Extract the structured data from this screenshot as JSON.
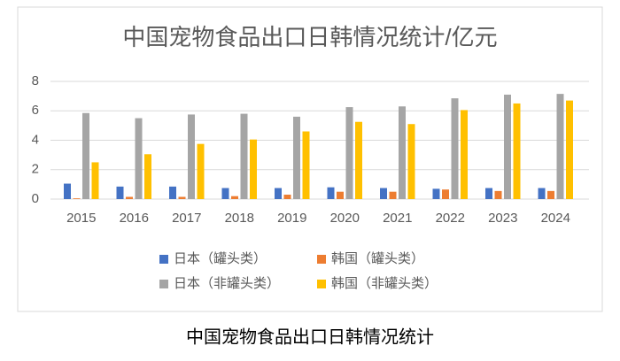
{
  "chart_data": {
    "type": "bar",
    "title": "中国宠物食品出口日韩情况统计/亿元",
    "caption": "中国宠物食品出口日韩情况统计",
    "categories": [
      "2015",
      "2016",
      "2017",
      "2018",
      "2019",
      "2020",
      "2021",
      "2022",
      "2023",
      "2024"
    ],
    "series": [
      {
        "name": "日本（罐头类）",
        "color": "#4472c4",
        "values": [
          1.05,
          0.85,
          0.85,
          0.75,
          0.75,
          0.8,
          0.75,
          0.7,
          0.75,
          0.75
        ]
      },
      {
        "name": "韩国（罐头类）",
        "color": "#ed7d31",
        "values": [
          0.05,
          0.15,
          0.15,
          0.2,
          0.3,
          0.5,
          0.5,
          0.65,
          0.55,
          0.55
        ]
      },
      {
        "name": "日本（非罐头类）",
        "color": "#a5a5a5",
        "values": [
          5.85,
          5.5,
          5.75,
          5.8,
          5.6,
          6.25,
          6.3,
          6.85,
          7.1,
          7.15
        ]
      },
      {
        "name": "韩国（非罐头类）",
        "color": "#ffc000",
        "values": [
          2.5,
          3.05,
          3.75,
          4.05,
          4.6,
          5.25,
          5.1,
          6.05,
          6.5,
          6.7
        ]
      }
    ],
    "ylim": [
      0,
      8
    ],
    "yticks": [
      0,
      2,
      4,
      6,
      8
    ],
    "grid": true
  }
}
